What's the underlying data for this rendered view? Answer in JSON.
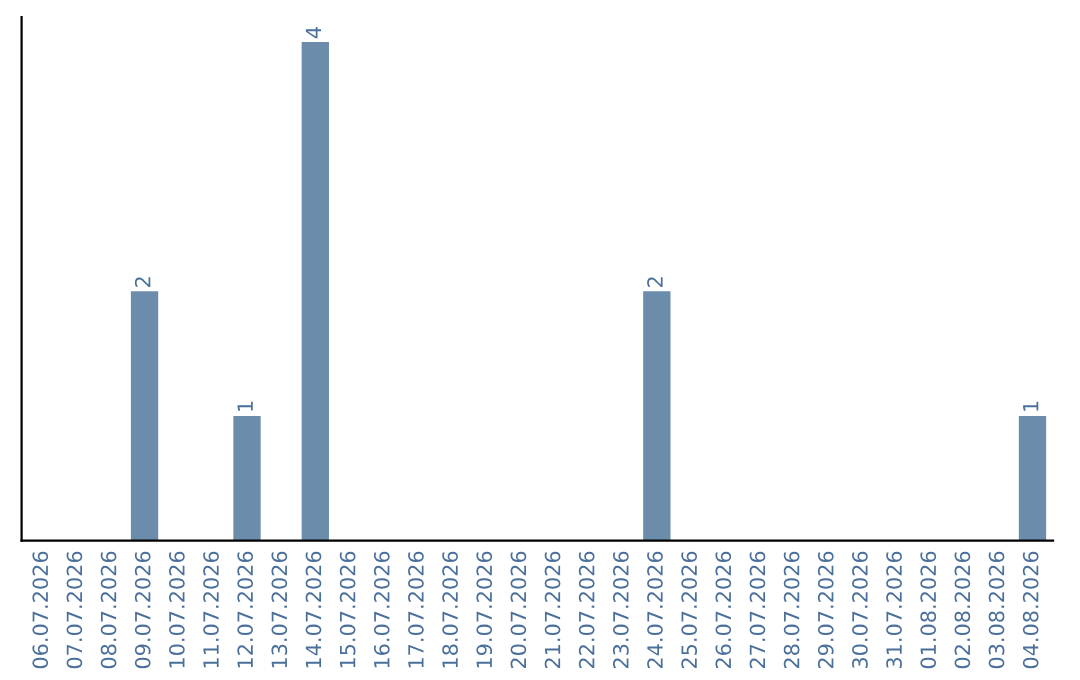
{
  "chart_data": {
    "type": "bar",
    "categories": [
      "06.07.2026",
      "07.07.2026",
      "08.07.2026",
      "09.07.2026",
      "10.07.2026",
      "11.07.2026",
      "12.07.2026",
      "13.07.2026",
      "14.07.2026",
      "15.07.2026",
      "16.07.2026",
      "17.07.2026",
      "18.07.2026",
      "19.07.2026",
      "20.07.2026",
      "21.07.2026",
      "22.07.2026",
      "23.07.2026",
      "24.07.2026",
      "25.07.2026",
      "26.07.2026",
      "27.07.2026",
      "28.07.2026",
      "29.07.2026",
      "30.07.2026",
      "31.07.2026",
      "01.08.2026",
      "02.08.2026",
      "03.08.2026",
      "04.08.2026"
    ],
    "values": [
      0,
      0,
      0,
      2,
      0,
      0,
      1,
      0,
      4,
      0,
      0,
      0,
      0,
      0,
      0,
      0,
      0,
      0,
      2,
      0,
      0,
      0,
      0,
      0,
      0,
      0,
      0,
      0,
      0,
      1
    ],
    "value_labels": [
      null,
      null,
      null,
      "2",
      null,
      null,
      "1",
      null,
      "4",
      null,
      null,
      null,
      null,
      null,
      null,
      null,
      null,
      null,
      "2",
      null,
      null,
      null,
      null,
      null,
      null,
      null,
      null,
      null,
      null,
      "1"
    ],
    "color": "#6b8cab",
    "tick_labels": "x",
    "grid": false,
    "legend": false
  }
}
